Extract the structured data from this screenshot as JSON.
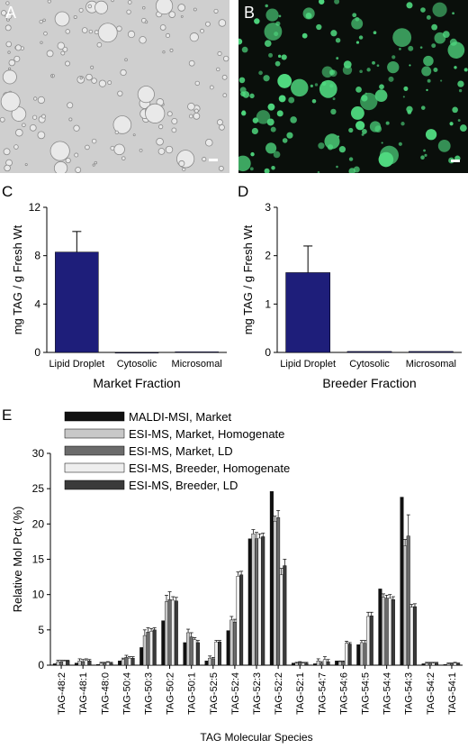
{
  "panels": {
    "A": {
      "letter": "A"
    },
    "B": {
      "letter": "B"
    },
    "C": {
      "letter": "C"
    },
    "D": {
      "letter": "D"
    },
    "E": {
      "letter": "E"
    }
  },
  "colors": {
    "bar_blue": "#1e1e7a",
    "panelA_bg": "#cfcfcf",
    "panelB_bg": "#0a0f0b",
    "droplet_green": "#4fd97f",
    "maldi_market": "#111111",
    "esi_market_homog": "#c8c8c8",
    "esi_market_ld": "#6b6b6b",
    "esi_breeder_homog": "#eeeeee",
    "esi_breeder_ld": "#3a3a3a"
  },
  "chart_data": [
    {
      "type": "bar",
      "panel": "C",
      "categories": [
        "Lipid Droplet",
        "Cytosolic",
        "Microsomal"
      ],
      "values": [
        8.3,
        0.0,
        0.05
      ],
      "errors": [
        1.7,
        0.0,
        0.0
      ],
      "xlabel": "Market Fraction",
      "ylabel": "mg TAG / g Fresh Wt",
      "ylim": [
        0,
        12
      ],
      "yticks": [
        0,
        4,
        8,
        12
      ]
    },
    {
      "type": "bar",
      "panel": "D",
      "categories": [
        "Lipid Droplet",
        "Cytosolic",
        "Microsomal"
      ],
      "values": [
        1.65,
        0.02,
        0.02
      ],
      "errors": [
        0.55,
        0.0,
        0.0
      ],
      "xlabel": "Breeder Fraction",
      "ylabel": "mg TAG / g Fresh Wt",
      "ylim": [
        0,
        3
      ],
      "yticks": [
        0,
        1,
        2,
        3
      ]
    },
    {
      "type": "bar",
      "panel": "E",
      "categories": [
        "TAG-48:2",
        "TAG-48:1",
        "TAG-48:0",
        "TAG-50:4",
        "TAG-50:3",
        "TAG-50:2",
        "TAG-50:1",
        "TAG-52:5",
        "TAG-52:4",
        "TAG-52:3",
        "TAG-52:2",
        "TAG-52:1",
        "TAG-54:7",
        "TAG-54:6",
        "TAG-54:5",
        "TAG-54:4",
        "TAG-54:3",
        "TAG-54:2",
        "TAG-54:1"
      ],
      "series": [
        {
          "name": "MALDI-MSI, Market",
          "values": [
            0.2,
            0.3,
            0.1,
            0.6,
            2.5,
            6.3,
            3.2,
            0.6,
            4.9,
            17.9,
            24.6,
            0.3,
            0.2,
            0.6,
            2.9,
            10.8,
            23.8,
            0.2,
            0.1
          ],
          "errors": [
            0,
            0,
            0,
            0,
            0,
            0,
            0,
            0,
            0,
            0,
            0,
            0,
            0,
            0,
            0,
            0,
            0,
            0,
            0
          ]
        },
        {
          "name": "ESI-MS, Market, Homogenate",
          "values": [
            0.5,
            0.6,
            0.3,
            0.8,
            4.2,
            9.0,
            4.6,
            1.0,
            6.4,
            18.6,
            20.4,
            0.3,
            0.6,
            0.5,
            3.2,
            9.6,
            16.9,
            0.3,
            0.2
          ],
          "errors": [
            0.2,
            0.3,
            0.1,
            0.2,
            0.8,
            0.9,
            0.5,
            0.3,
            0.5,
            0.6,
            0.7,
            0.1,
            0.3,
            0.1,
            0.3,
            0.5,
            0.9,
            0.1,
            0.1
          ]
        },
        {
          "name": "ESI-MS, Market, LD",
          "values": [
            0.5,
            0.5,
            0.3,
            1.1,
            4.7,
            9.3,
            4.0,
            0.9,
            6.1,
            17.9,
            20.9,
            0.4,
            0.3,
            0.5,
            3.1,
            9.5,
            18.3,
            0.3,
            0.2
          ],
          "errors": [
            0.2,
            0.3,
            0.1,
            0.3,
            0.6,
            1.1,
            0.6,
            0.2,
            0.4,
            0.9,
            1.0,
            0.1,
            0.2,
            0.1,
            0.4,
            0.4,
            3.0,
            0.1,
            0.1
          ]
        },
        {
          "name": "ESI-MS, Breeder, Homogenate",
          "values": [
            0.6,
            0.7,
            0.4,
            1.0,
            4.8,
            9.2,
            3.6,
            3.3,
            12.6,
            18.0,
            12.8,
            0.3,
            0.8,
            3.1,
            6.9,
            9.5,
            8.2,
            0.3,
            0.3
          ],
          "errors": [
            0.1,
            0.2,
            0.1,
            0.2,
            0.4,
            0.5,
            0.3,
            0.2,
            0.6,
            0.6,
            0.9,
            0.1,
            0.4,
            0.3,
            0.6,
            0.5,
            0.4,
            0.1,
            0.1
          ]
        },
        {
          "name": "ESI-MS, Breeder, LD",
          "values": [
            0.6,
            0.6,
            0.3,
            1.0,
            5.0,
            9.1,
            3.2,
            3.3,
            12.8,
            18.2,
            14.1,
            0.3,
            0.5,
            3.0,
            7.0,
            9.3,
            8.3,
            0.3,
            0.2
          ],
          "errors": [
            0.1,
            0.2,
            0.1,
            0.2,
            0.3,
            0.5,
            0.3,
            0.2,
            0.5,
            0.5,
            0.9,
            0.1,
            0.3,
            0.2,
            0.5,
            0.4,
            0.4,
            0.1,
            0.1
          ]
        }
      ],
      "xlabel": "TAG Molecular Species",
      "ylabel": "Relative Mol Pct (%)",
      "ylim": [
        0,
        30
      ],
      "yticks": [
        0,
        5,
        10,
        15,
        20,
        25,
        30
      ],
      "legend_position": "top-left"
    }
  ]
}
